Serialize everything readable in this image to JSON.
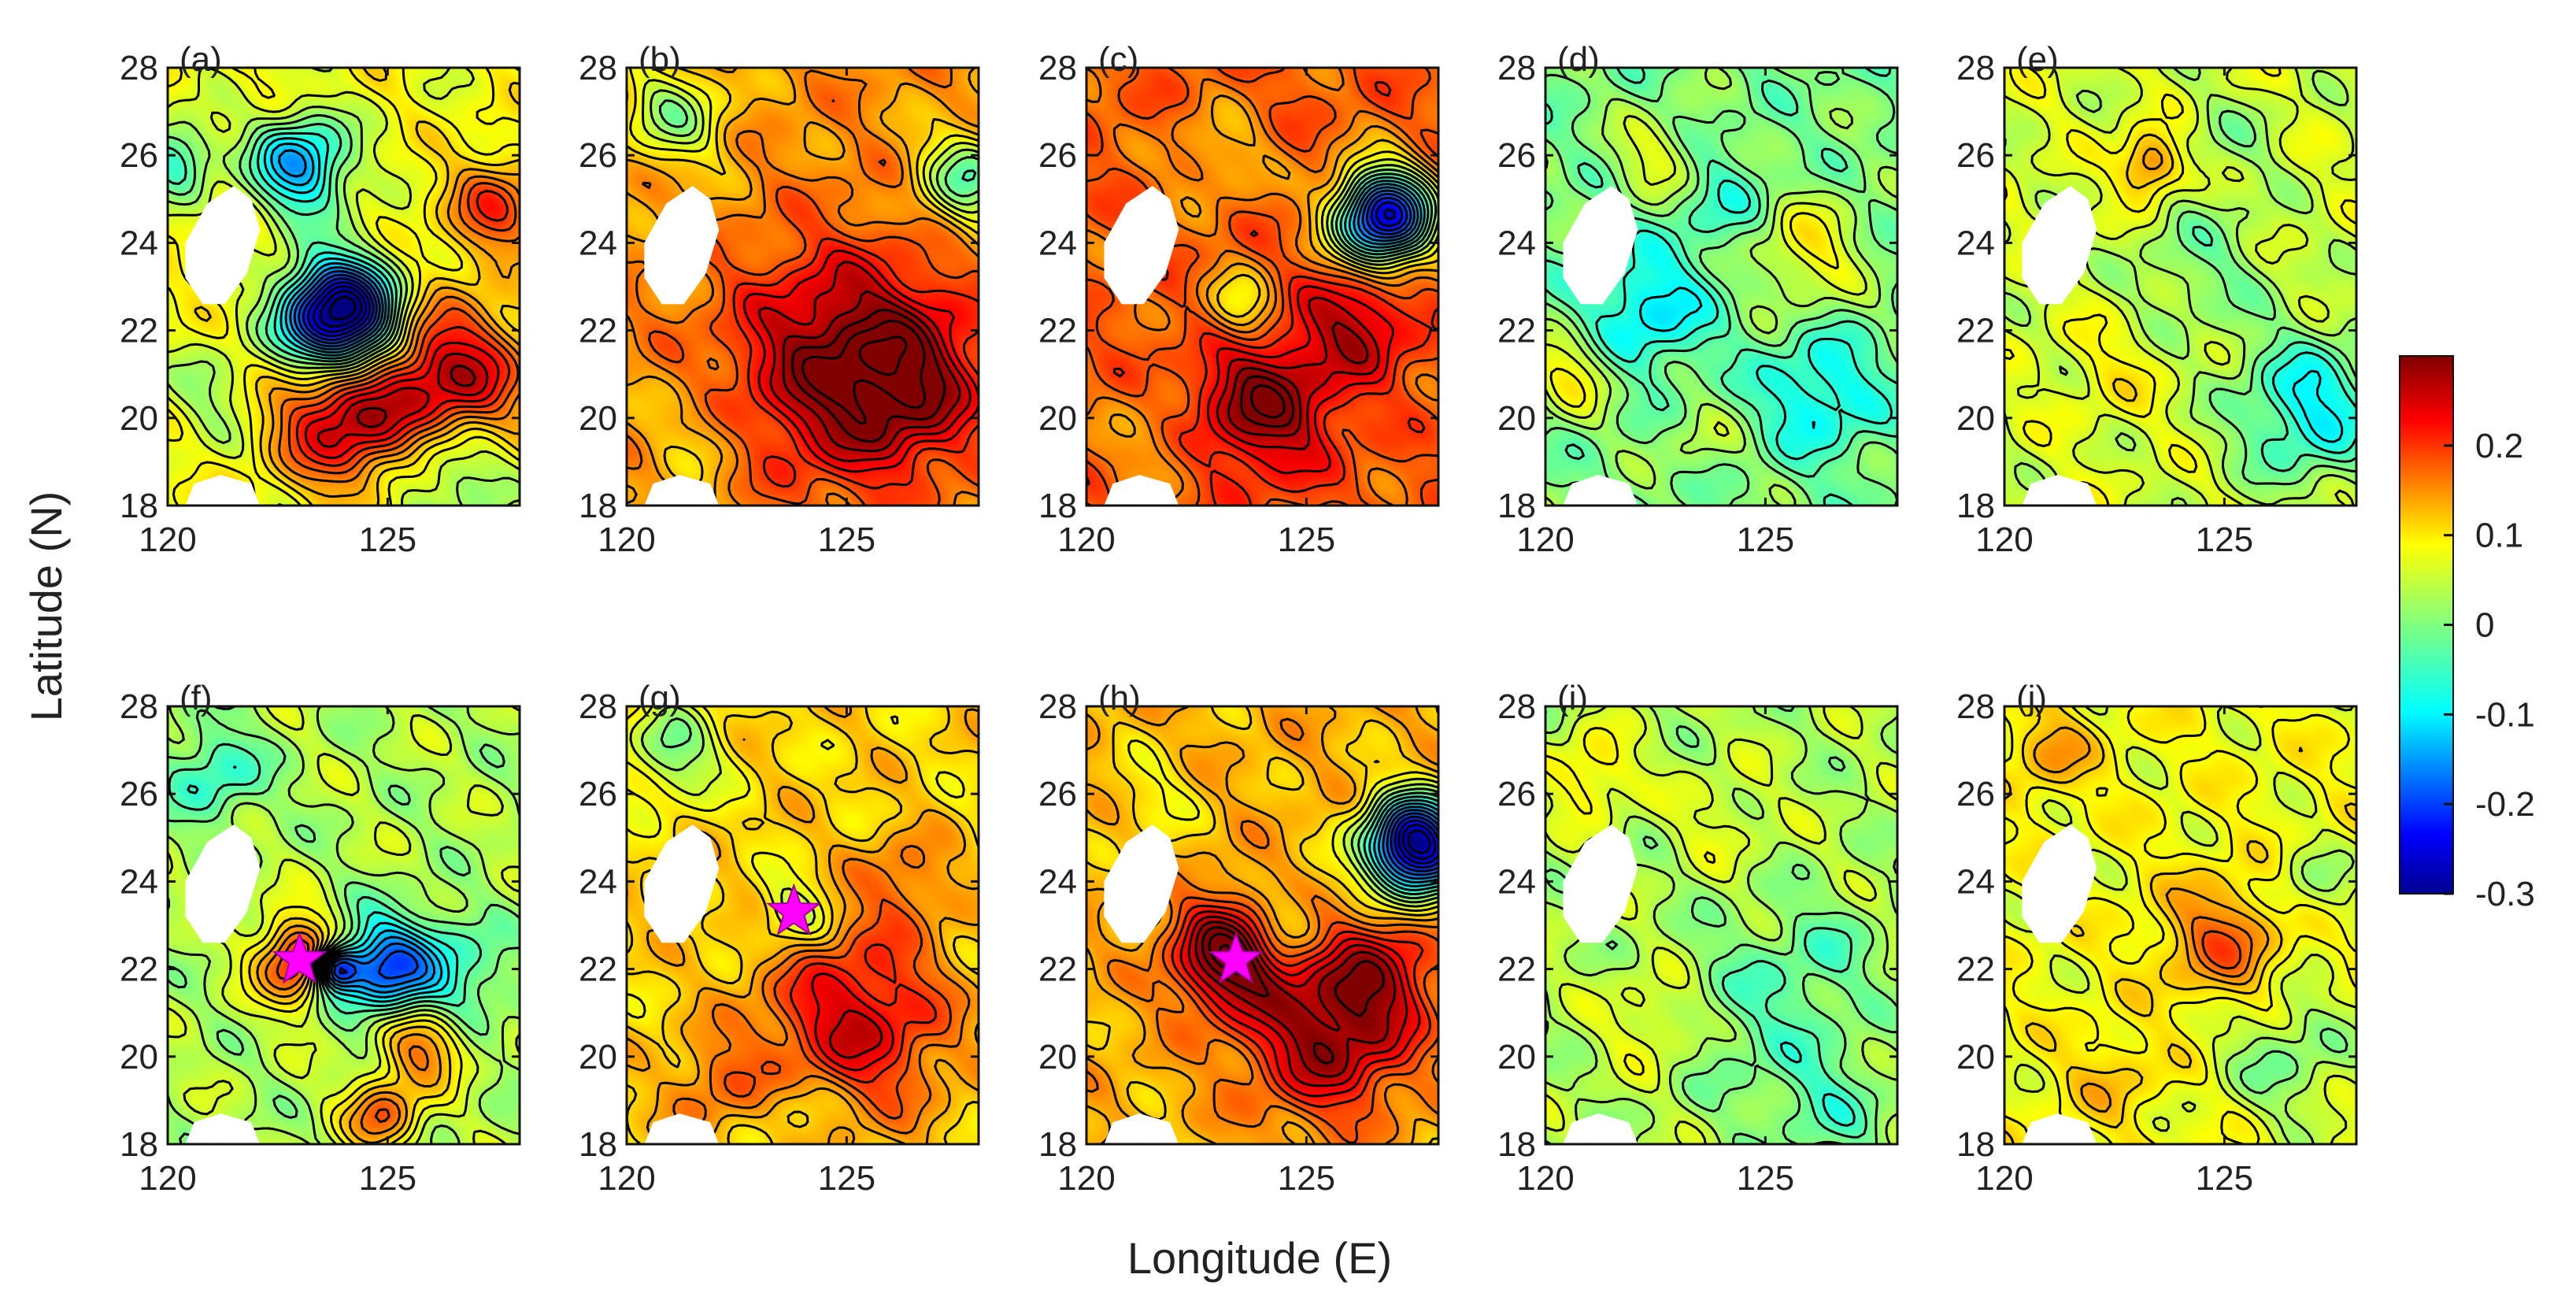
{
  "chart_data": {
    "type": "heatmap",
    "layout": "2 rows x 5 columns of filled-contour map panels",
    "xlabel": "Longitude (E)",
    "ylabel": "Latitude (N)",
    "xlim": [
      120,
      128
    ],
    "ylim": [
      18,
      28
    ],
    "xticks": [
      120,
      125
    ],
    "yticks": [
      18,
      20,
      22,
      24,
      26,
      28
    ],
    "xtick_labels": [
      "120",
      "125"
    ],
    "ytick_labels": [
      "18",
      "20",
      "22",
      "24",
      "26",
      "28"
    ],
    "colorbar": {
      "min": -0.3,
      "max": 0.3,
      "ticks": [
        -0.3,
        -0.2,
        -0.1,
        0,
        0.1,
        0.2
      ],
      "tick_labels": [
        "-0.3",
        "-0.2",
        "-0.1",
        "0",
        "0.1",
        "0.2"
      ],
      "colormap": "jet",
      "colors": [
        "#00008f",
        "#0000ff",
        "#0080ff",
        "#00ffff",
        "#80ff80",
        "#ffff00",
        "#ff8000",
        "#ff0000",
        "#800000"
      ]
    },
    "land_masks": [
      {
        "name": "taiwan",
        "outline": [
          [
            121.9,
            25.0
          ],
          [
            122.1,
            24.3
          ],
          [
            121.8,
            23.3
          ],
          [
            121.3,
            22.6
          ],
          [
            120.8,
            22.6
          ],
          [
            120.4,
            23.2
          ],
          [
            120.4,
            24.0
          ],
          [
            120.9,
            24.9
          ],
          [
            121.5,
            25.3
          ]
        ]
      },
      {
        "name": "luzon-tip",
        "outline": [
          [
            120.4,
            18.0
          ],
          [
            120.6,
            18.5
          ],
          [
            121.2,
            18.7
          ],
          [
            121.9,
            18.5
          ],
          [
            122.1,
            18.0
          ]
        ]
      }
    ],
    "panels": [
      {
        "label": "(a)",
        "base": 0.07,
        "eddies": [
          {
            "lon": 123.9,
            "lat": 22.3,
            "amp": -0.42,
            "r": 0.9
          },
          {
            "lon": 124.0,
            "lat": 20.0,
            "amp": 0.2,
            "r": 1.1
          },
          {
            "lon": 126.5,
            "lat": 20.9,
            "amp": 0.2,
            "r": 1.2
          },
          {
            "lon": 123.0,
            "lat": 25.8,
            "amp": -0.2,
            "r": 0.8
          },
          {
            "lon": 127.5,
            "lat": 24.8,
            "amp": 0.12,
            "r": 0.8
          },
          {
            "lon": 126.5,
            "lat": 18.8,
            "amp": -0.1,
            "r": 1.0
          },
          {
            "lon": 120.2,
            "lat": 26.0,
            "amp": -0.12,
            "r": 0.6
          },
          {
            "lon": 121.0,
            "lat": 20.5,
            "amp": -0.05,
            "r": 0.8
          }
        ]
      },
      {
        "label": "(b)",
        "base": 0.14,
        "eddies": [
          {
            "lon": 125.0,
            "lat": 21.2,
            "amp": 0.17,
            "r": 1.8
          },
          {
            "lon": 126.5,
            "lat": 20.8,
            "amp": 0.08,
            "r": 1.2
          },
          {
            "lon": 127.8,
            "lat": 25.5,
            "amp": -0.15,
            "r": 0.8
          },
          {
            "lon": 121.0,
            "lat": 27.0,
            "amp": -0.12,
            "r": 0.9
          },
          {
            "lon": 121.5,
            "lat": 19.5,
            "amp": -0.04,
            "r": 1.0
          }
        ]
      },
      {
        "label": "(c)",
        "base": 0.17,
        "eddies": [
          {
            "lon": 126.8,
            "lat": 24.6,
            "amp": -0.42,
            "r": 0.8
          },
          {
            "lon": 124.0,
            "lat": 20.3,
            "amp": 0.14,
            "r": 1.1
          },
          {
            "lon": 126.2,
            "lat": 22.2,
            "amp": 0.1,
            "r": 0.9
          },
          {
            "lon": 123.5,
            "lat": 22.5,
            "amp": -0.1,
            "r": 0.6
          },
          {
            "lon": 123.0,
            "lat": 26.0,
            "amp": -0.06,
            "r": 0.8
          },
          {
            "lon": 121.5,
            "lat": 19.5,
            "amp": -0.04,
            "r": 0.9
          }
        ]
      },
      {
        "label": "(d)",
        "base": 0.0,
        "eddies": [
          {
            "lon": 122.3,
            "lat": 22.5,
            "amp": -0.09,
            "r": 1.0
          },
          {
            "lon": 126.3,
            "lat": 20.5,
            "amp": -0.08,
            "r": 1.0
          },
          {
            "lon": 126.0,
            "lat": 23.8,
            "amp": 0.08,
            "r": 0.9
          },
          {
            "lon": 122.5,
            "lat": 26.0,
            "amp": 0.06,
            "r": 0.7
          },
          {
            "lon": 120.5,
            "lat": 21.0,
            "amp": 0.08,
            "r": 0.7
          },
          {
            "lon": 124.0,
            "lat": 25.0,
            "amp": -0.04,
            "r": 0.8
          },
          {
            "lon": 123.5,
            "lat": 19.5,
            "amp": 0.03,
            "r": 0.7
          }
        ]
      },
      {
        "label": "(e)",
        "base": 0.05,
        "eddies": [
          {
            "lon": 127.0,
            "lat": 20.2,
            "amp": -0.13,
            "r": 1.2
          },
          {
            "lon": 123.3,
            "lat": 25.8,
            "amp": 0.12,
            "r": 0.5
          },
          {
            "lon": 124.5,
            "lat": 23.5,
            "amp": -0.05,
            "r": 1.2
          },
          {
            "lon": 125.2,
            "lat": 26.5,
            "amp": -0.03,
            "r": 0.8
          },
          {
            "lon": 122.5,
            "lat": 21.0,
            "amp": 0.03,
            "r": 0.8
          }
        ]
      },
      {
        "label": "(f)",
        "base": 0.03,
        "eddies": [
          {
            "lon": 123.0,
            "lat": 22.2,
            "amp": 0.2,
            "r": 0.7
          },
          {
            "lon": 124.9,
            "lat": 22.0,
            "amp": -0.2,
            "r": 0.8
          },
          {
            "lon": 125.8,
            "lat": 20.3,
            "amp": 0.14,
            "r": 0.7
          },
          {
            "lon": 124.9,
            "lat": 18.6,
            "amp": 0.14,
            "r": 0.6
          },
          {
            "lon": 126.5,
            "lat": 21.8,
            "amp": -0.08,
            "r": 0.9
          },
          {
            "lon": 121.0,
            "lat": 26.5,
            "amp": -0.08,
            "r": 0.8
          },
          {
            "lon": 123.8,
            "lat": 22.0,
            "amp": -0.25,
            "r": 0.35
          }
        ]
      },
      {
        "label": "(g)",
        "base": 0.1,
        "eddies": [
          {
            "lon": 125.2,
            "lat": 20.8,
            "amp": 0.15,
            "r": 1.5
          },
          {
            "lon": 123.8,
            "lat": 23.3,
            "amp": -0.08,
            "r": 0.6
          },
          {
            "lon": 121.0,
            "lat": 27.0,
            "amp": -0.1,
            "r": 0.8
          },
          {
            "lon": 126.3,
            "lat": 24.0,
            "amp": 0.06,
            "r": 0.8
          },
          {
            "lon": 122.0,
            "lat": 19.3,
            "amp": 0.06,
            "r": 0.8
          },
          {
            "lon": 124.0,
            "lat": 18.8,
            "amp": -0.04,
            "r": 0.7
          }
        ]
      },
      {
        "label": "(h)",
        "base": 0.12,
        "eddies": [
          {
            "lon": 123.2,
            "lat": 22.3,
            "amp": 0.2,
            "r": 0.9
          },
          {
            "lon": 125.5,
            "lat": 20.5,
            "amp": 0.17,
            "r": 1.3
          },
          {
            "lon": 126.8,
            "lat": 22.0,
            "amp": 0.1,
            "r": 1.0
          },
          {
            "lon": 127.5,
            "lat": 24.8,
            "amp": -0.42,
            "r": 0.8
          },
          {
            "lon": 124.5,
            "lat": 23.0,
            "amp": -0.08,
            "r": 0.6
          },
          {
            "lon": 121.5,
            "lat": 26.0,
            "amp": -0.04,
            "r": 0.8
          }
        ]
      },
      {
        "label": "(i)",
        "base": 0.03,
        "eddies": [
          {
            "lon": 125.0,
            "lat": 21.0,
            "amp": -0.05,
            "r": 1.5
          },
          {
            "lon": 126.5,
            "lat": 18.8,
            "amp": -0.05,
            "r": 0.9
          },
          {
            "lon": 121.0,
            "lat": 26.5,
            "amp": 0.07,
            "r": 0.7
          },
          {
            "lon": 122.5,
            "lat": 20.8,
            "amp": 0.05,
            "r": 0.8
          },
          {
            "lon": 124.0,
            "lat": 25.5,
            "amp": 0.03,
            "r": 0.8
          },
          {
            "lon": 126.5,
            "lat": 22.5,
            "amp": -0.03,
            "r": 0.8
          }
        ]
      },
      {
        "label": "(j)",
        "base": 0.07,
        "eddies": [
          {
            "lon": 125.0,
            "lat": 22.6,
            "amp": 0.1,
            "r": 1.0
          },
          {
            "lon": 126.5,
            "lat": 20.0,
            "amp": -0.07,
            "r": 1.2
          },
          {
            "lon": 127.0,
            "lat": 24.0,
            "amp": -0.05,
            "r": 0.7
          },
          {
            "lon": 121.0,
            "lat": 27.0,
            "amp": 0.06,
            "r": 0.7
          },
          {
            "lon": 122.5,
            "lat": 19.5,
            "amp": 0.04,
            "r": 0.8
          }
        ]
      }
    ],
    "markers": [
      {
        "panel": "(f)",
        "lon": 123.0,
        "lat": 22.2,
        "shape": "star",
        "color": "#ff00ff"
      },
      {
        "panel": "(g)",
        "lon": 123.8,
        "lat": 23.3,
        "shape": "star",
        "color": "#ff00ff"
      },
      {
        "panel": "(h)",
        "lon": 123.4,
        "lat": 22.2,
        "shape": "star",
        "color": "#ff00ff"
      }
    ]
  }
}
